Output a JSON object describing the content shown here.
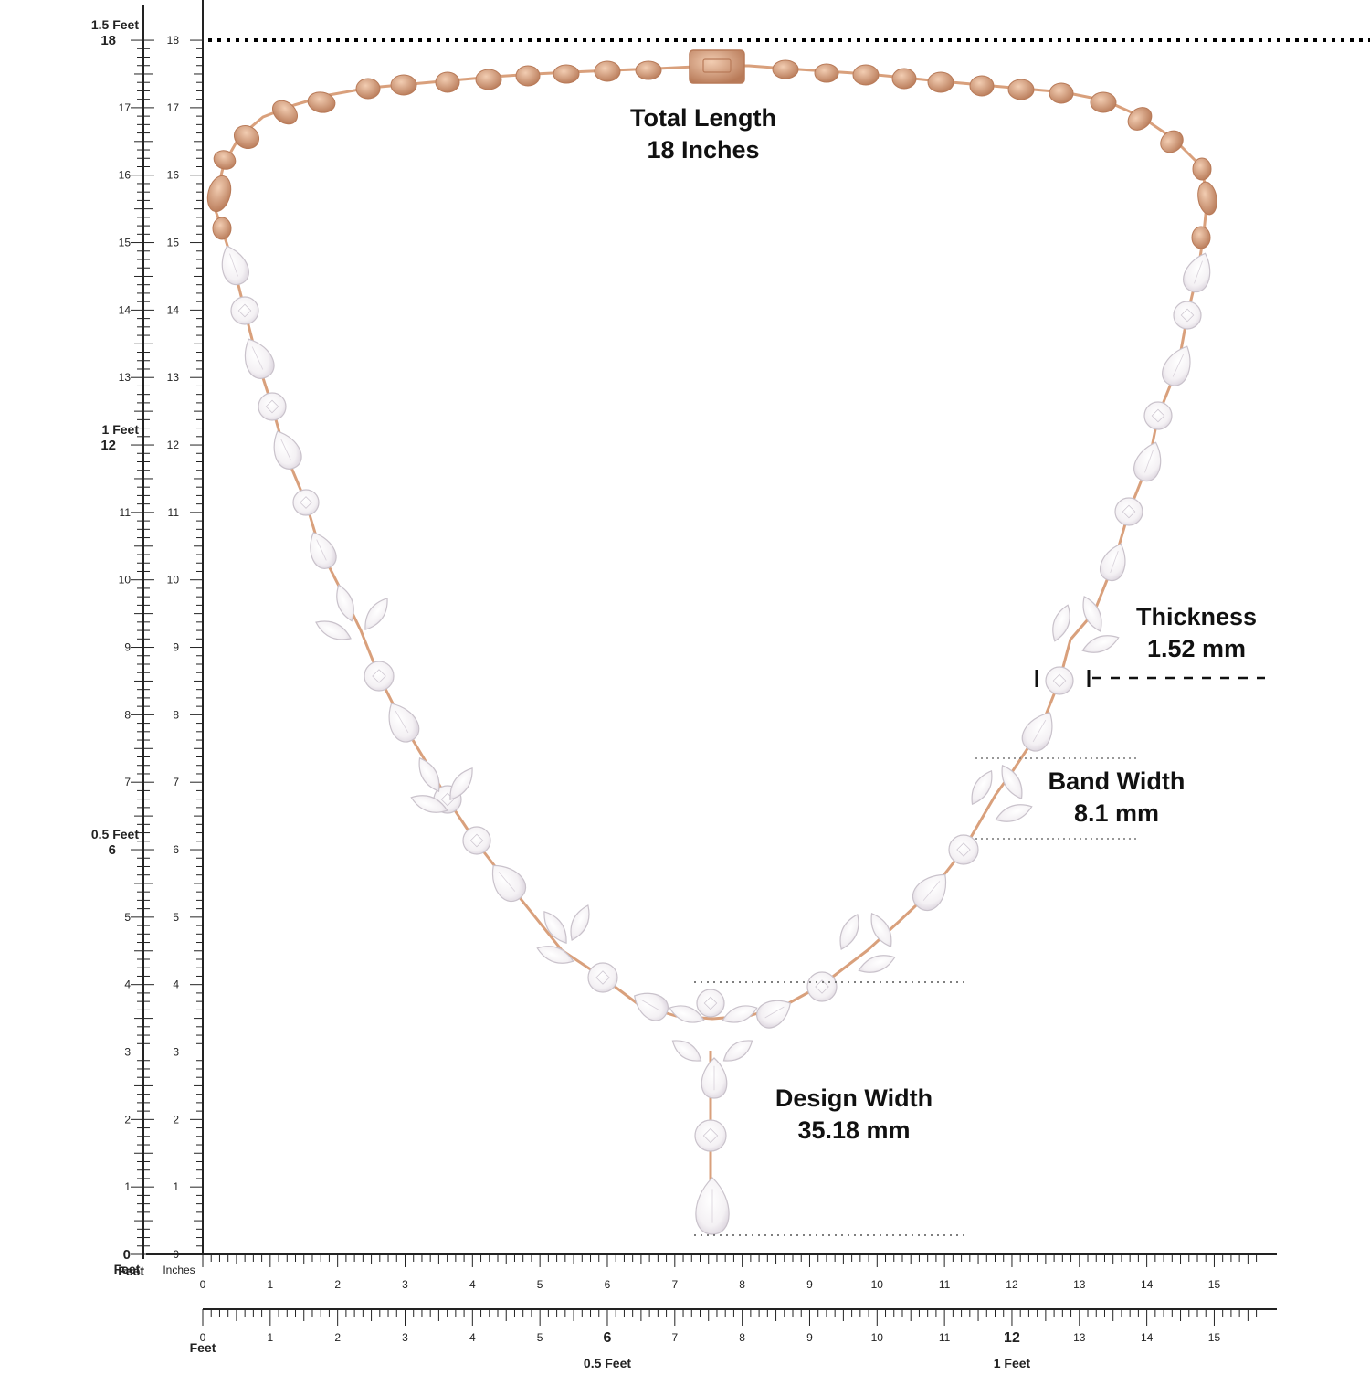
{
  "colors": {
    "ink": "#222222",
    "gold": "#d9a07c",
    "gold_dark": "#b87a58",
    "gold_light": "#f2cdb2",
    "diamond": "#f4f1f4",
    "diamond_edge": "#c9c2cb",
    "label": "#111111"
  },
  "vertical_scale": {
    "unit": "inches",
    "ticks": [
      "0",
      "1",
      "2",
      "3",
      "4",
      "5",
      "6",
      "7",
      "8",
      "9",
      "10",
      "11",
      "12",
      "13",
      "14",
      "15",
      "16",
      "17",
      "18"
    ],
    "feet_marks": [
      {
        "inch": "6",
        "label": "0.5 Feet"
      },
      {
        "inch": "12",
        "label": "1 Feet"
      },
      {
        "inch": "18",
        "label": "1.5 Feet"
      }
    ],
    "zero_feet_label": "Feet"
  },
  "horizontal_scale": {
    "corner_feet": "Feet",
    "corner_inches": "Inches",
    "ticks": [
      "0",
      "1",
      "2",
      "3",
      "4",
      "5",
      "6",
      "7",
      "8",
      "9",
      "10",
      "11",
      "12",
      "13",
      "14",
      "15"
    ],
    "lower_corner_feet": "Feet",
    "lower_ticks": [
      "0",
      "1",
      "2",
      "3",
      "4",
      "5",
      "6",
      "7",
      "8",
      "9",
      "10",
      "11",
      "12",
      "13",
      "14",
      "15"
    ],
    "lower_bold": {
      "6": "6",
      "12": "12"
    },
    "lower_feet_labels": [
      "0.5 Feet",
      "1 Feet"
    ]
  },
  "measurements": {
    "total_length": {
      "title": "Total Length",
      "value": "18 Inches"
    },
    "thickness": {
      "title": "Thickness",
      "value": "1.52 mm"
    },
    "band_width": {
      "title": "Band Width",
      "value": "8.1 mm"
    },
    "design_width": {
      "title": "Design Width",
      "value": "35.18 mm"
    }
  },
  "product": {
    "icon": "necklace-icon",
    "clasp_icon": "box-clasp-icon"
  }
}
